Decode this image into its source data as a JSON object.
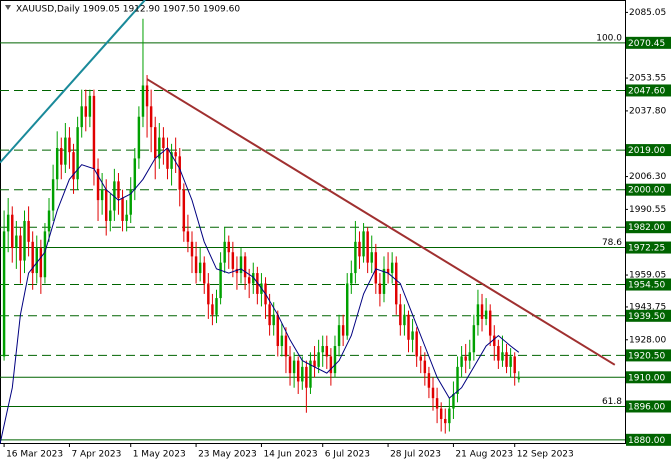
{
  "chart_data": {
    "type": "candlestick",
    "title": "XAUUSD,Daily  1909.05 1912.90 1907.50 1909.60",
    "bull_color": "#00a000",
    "bear_color": "#e00000",
    "xlim": [
      -1,
      152
    ],
    "ylim": [
      1878,
      2091
    ],
    "xticks": [
      {
        "value": 0,
        "label": "16 Mar 2023"
      },
      {
        "value": 16,
        "label": "7 Apr 2023"
      },
      {
        "value": 31,
        "label": "1 May 2023"
      },
      {
        "value": 47,
        "label": "23 May 2023"
      },
      {
        "value": 63,
        "label": "14 Jun 2023"
      },
      {
        "value": 78,
        "label": "6 Jul 2023"
      },
      {
        "value": 94,
        "label": "28 Jul 2023"
      },
      {
        "value": 110,
        "label": "21 Aug 2023"
      },
      {
        "value": 125,
        "label": "12 Sep 2023"
      }
    ],
    "yticks": [
      2085.05,
      2053.55,
      {
        "value": 2037.8,
        "label": "2037.80"
      },
      {
        "value": 2006.3,
        "label": "2006.30"
      },
      1990.55,
      1959.05,
      1943.75,
      {
        "value": 1928,
        "label": "1928.00"
      }
    ],
    "open": [
      1920,
      1980,
      1988,
      1972,
      1978,
      1966,
      1985,
      1975,
      1960,
      1972,
      1958,
      1980,
      1990,
      2005,
      2020,
      2012,
      2025,
      2018,
      2005,
      2030,
      2040,
      2035,
      2045,
      2010,
      1995,
      2000,
      1985,
      1990,
      2004,
      1996,
      1985,
      1988,
      2000,
      2015,
      2035,
      2050,
      2040,
      2030,
      2015,
      2025,
      2020,
      2010,
      2018,
      2016,
      2000,
      1980,
      1975,
      1968,
      1960,
      1965,
      1955,
      1945,
      1940,
      1948,
      1965,
      1975,
      1970,
      1962,
      1960,
      1968,
      1958,
      1955,
      1960,
      1950,
      1955,
      1945,
      1935,
      1940,
      1925,
      1930,
      1920,
      1912,
      1918,
      1908,
      1915,
      1905,
      1918,
      1915,
      1922,
      1925,
      1920,
      1912,
      1925,
      1935,
      1930,
      1955,
      1960,
      1975,
      1968,
      1980,
      1965,
      1970,
      1955,
      1950,
      1962,
      1960,
      1965,
      1945,
      1935,
      1940,
      1928,
      1932,
      1920,
      1918,
      1912,
      1905,
      1900,
      1895,
      1890,
      1888,
      1895,
      1902,
      1915,
      1920,
      1918,
      1922,
      1935,
      1945,
      1938,
      1942,
      1930,
      1925,
      1918,
      1922,
      1915,
      1920,
      1909.05
    ],
    "high": [
      1990,
      1996,
      1992,
      1985,
      1982,
      1990,
      1992,
      1980,
      1978,
      1976,
      1984,
      1996,
      2012,
      2028,
      2025,
      2032,
      2030,
      2022,
      2035,
      2048,
      2048,
      2048,
      2048,
      2015,
      2008,
      2005,
      1998,
      2010,
      2008,
      2000,
      1995,
      2006,
      2020,
      2040,
      2082,
      2055,
      2048,
      2035,
      2032,
      2030,
      2025,
      2022,
      2025,
      2020,
      2003,
      1988,
      1980,
      1975,
      1972,
      1968,
      1960,
      1950,
      1952,
      1970,
      1982,
      1978,
      1975,
      1968,
      1972,
      1970,
      1962,
      1965,
      1963,
      1960,
      1958,
      1950,
      1946,
      1942,
      1936,
      1934,
      1925,
      1922,
      1920,
      1920,
      1918,
      1922,
      1925,
      1928,
      1930,
      1930,
      1924,
      1930,
      1940,
      1940,
      1960,
      1966,
      1985,
      1980,
      1984,
      1982,
      1978,
      1974,
      1960,
      1968,
      1970,
      1970,
      1968,
      1950,
      1945,
      1942,
      1938,
      1934,
      1925,
      1922,
      1915,
      1910,
      1905,
      1898,
      1895,
      1900,
      1908,
      1920,
      1925,
      1926,
      1928,
      1940,
      1952,
      1950,
      1948,
      1945,
      1935,
      1928,
      1930,
      1926,
      1924,
      1922,
      1912.9
    ],
    "low": [
      1918,
      1970,
      1965,
      1962,
      1955,
      1960,
      1968,
      1952,
      1955,
      1950,
      1955,
      1975,
      1985,
      2000,
      2005,
      2008,
      2010,
      1998,
      2000,
      2025,
      2028,
      2030,
      2002,
      1985,
      1988,
      1978,
      1980,
      1985,
      1988,
      1980,
      1980,
      1984,
      1995,
      2010,
      2030,
      2025,
      2018,
      2005,
      2010,
      2012,
      2005,
      2002,
      2008,
      1992,
      1975,
      1970,
      1960,
      1955,
      1956,
      1950,
      1938,
      1935,
      1936,
      1945,
      1960,
      1962,
      1958,
      1952,
      1955,
      1952,
      1948,
      1950,
      1945,
      1944,
      1938,
      1930,
      1930,
      1920,
      1920,
      1912,
      1906,
      1905,
      1902,
      1904,
      1893,
      1902,
      1910,
      1912,
      1915,
      1914,
      1906,
      1910,
      1920,
      1925,
      1928,
      1950,
      1955,
      1962,
      1965,
      1960,
      1960,
      1950,
      1944,
      1946,
      1955,
      1955,
      1940,
      1930,
      1930,
      1922,
      1922,
      1915,
      1912,
      1906,
      1900,
      1894,
      1888,
      1884,
      1883,
      1884,
      1890,
      1898,
      1910,
      1912,
      1914,
      1918,
      1930,
      1932,
      1935,
      1925,
      1918,
      1914,
      1915,
      1912,
      1910,
      1906,
      1907.5
    ],
    "close": [
      1980,
      1988,
      1972,
      1978,
      1966,
      1985,
      1975,
      1960,
      1972,
      1958,
      1980,
      1990,
      2005,
      2020,
      2012,
      2025,
      2018,
      2005,
      2030,
      2040,
      2035,
      2045,
      2010,
      1995,
      2000,
      1985,
      1990,
      2004,
      1996,
      1985,
      1988,
      2000,
      2015,
      2035,
      2050,
      2040,
      2030,
      2015,
      2025,
      2020,
      2010,
      2018,
      2016,
      2000,
      1980,
      1975,
      1968,
      1960,
      1965,
      1955,
      1945,
      1940,
      1948,
      1965,
      1975,
      1970,
      1962,
      1960,
      1968,
      1958,
      1955,
      1960,
      1950,
      1955,
      1945,
      1935,
      1940,
      1925,
      1930,
      1920,
      1912,
      1918,
      1908,
      1915,
      1905,
      1918,
      1915,
      1922,
      1925,
      1920,
      1912,
      1925,
      1935,
      1930,
      1955,
      1960,
      1975,
      1968,
      1980,
      1965,
      1970,
      1955,
      1950,
      1962,
      1960,
      1965,
      1945,
      1935,
      1940,
      1928,
      1932,
      1920,
      1918,
      1912,
      1905,
      1900,
      1895,
      1890,
      1888,
      1895,
      1902,
      1915,
      1920,
      1918,
      1922,
      1935,
      1945,
      1938,
      1942,
      1930,
      1925,
      1918,
      1922,
      1915,
      1920,
      1912,
      1909.6
    ],
    "moving_average": {
      "color": "#000080",
      "x": [
        -1,
        2,
        4,
        6,
        8,
        10,
        13,
        16,
        19,
        22,
        25,
        28,
        31,
        34,
        37,
        40,
        43,
        46,
        49,
        52,
        55,
        58,
        61,
        64,
        67,
        70,
        73,
        76,
        79,
        82,
        85,
        88,
        91,
        94,
        97,
        100,
        103,
        106,
        109,
        112,
        115,
        118,
        121,
        124,
        126
      ],
      "values": [
        1878,
        1905,
        1940,
        1960,
        1965,
        1970,
        1990,
        2005,
        2012,
        2010,
        2000,
        1995,
        1998,
        2005,
        2015,
        2020,
        2010,
        1995,
        1975,
        1962,
        1960,
        1962,
        1958,
        1950,
        1940,
        1928,
        1918,
        1915,
        1912,
        1918,
        1930,
        1950,
        1962,
        1960,
        1955,
        1940,
        1925,
        1910,
        1900,
        1905,
        1915,
        1925,
        1930,
        1925,
        1922
      ]
    },
    "trendlines": [
      {
        "color": "#1a8a9a",
        "x": [
          -1,
          34.5
        ],
        "values": [
          2013,
          2091
        ]
      },
      {
        "color": "#a03030",
        "x": [
          35,
          149.5
        ],
        "values": [
          2053,
          1916
        ]
      }
    ],
    "levels": [
      {
        "value": 2070.45,
        "label": "2070.45",
        "dashed": false,
        "fib": "100.0"
      },
      {
        "value": 2047.6,
        "label": "2047.60",
        "dashed": true
      },
      {
        "value": 2019,
        "label": "2019.00",
        "dashed": true
      },
      {
        "value": 2000,
        "label": "2000.00",
        "dashed": true
      },
      {
        "value": 1982,
        "label": "1982.00",
        "dashed": true
      },
      {
        "value": 1972.25,
        "label": "1972.25",
        "dashed": false,
        "fib": "78.6"
      },
      {
        "value": 1954.5,
        "label": "1954.50",
        "dashed": true
      },
      {
        "value": 1939.5,
        "label": "1939.50",
        "dashed": true
      },
      {
        "value": 1920.5,
        "label": "1920.50",
        "dashed": true
      },
      {
        "value": 1910,
        "label": "1910.00",
        "dashed": false
      },
      {
        "value": 1896,
        "label": "1896.00",
        "dashed": false,
        "fib": "61.8"
      },
      {
        "value": 1880,
        "label": "1880.00",
        "dashed": false
      }
    ],
    "level_color": "#006400"
  }
}
